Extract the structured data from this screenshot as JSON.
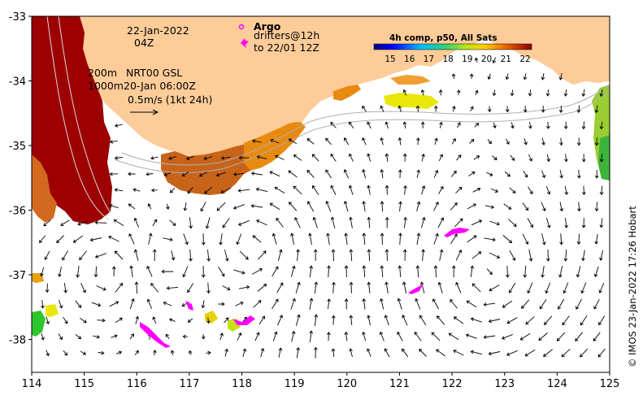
{
  "map": {
    "date_line1": "22-Jan-2022",
    "date_line2": "04Z",
    "legend_contours": "200m",
    "legend_contours2": "1000m",
    "legend_product": "NRT00 GSL",
    "legend_valid": "20-Jan 06:00Z",
    "scale_label": "0.5m/s (1kt 24h)",
    "argo_label": "Argo",
    "drifters_label": "drifters@12h",
    "drifters_to": "to 22/01 12Z",
    "colorbar_title": "4h comp, p50, All Sats",
    "colorbar_ticks": [
      "15",
      "16",
      "17",
      "18",
      "19",
      "20",
      "21",
      "22"
    ],
    "copyright": "© IMOS 23-Jan-2022 17:26 Hobart",
    "x_ticks": [
      "114",
      "115",
      "116",
      "117",
      "118",
      "119",
      "120",
      "121",
      "122",
      "123",
      "124",
      "125"
    ],
    "y_ticks": [
      "-33",
      "-34",
      "-35",
      "-36",
      "-37",
      "-38"
    ],
    "colors": {
      "land": "#fdcc99",
      "hot": "#9c0000",
      "orange": "#e88010",
      "dark_orange": "#c85a10",
      "yellow": "#e7e70c",
      "green": "#2ec42e",
      "drifter": "#ff00ff"
    }
  }
}
